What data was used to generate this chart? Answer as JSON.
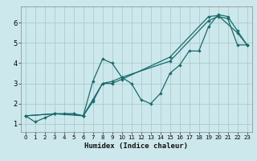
{
  "xlabel": "Humidex (Indice chaleur)",
  "bg_color": "#cce8ec",
  "grid_color": "#aacccc",
  "line_color": "#1a6b6b",
  "xlim": [
    -0.5,
    23.5
  ],
  "ylim": [
    0.6,
    6.8
  ],
  "xticks": [
    0,
    1,
    2,
    3,
    4,
    5,
    6,
    7,
    8,
    9,
    10,
    11,
    12,
    13,
    14,
    15,
    16,
    17,
    18,
    19,
    20,
    21,
    22,
    23
  ],
  "yticks": [
    1,
    2,
    3,
    4,
    5,
    6
  ],
  "series1": [
    [
      0,
      1.4
    ],
    [
      1,
      1.1
    ],
    [
      2,
      1.3
    ],
    [
      3,
      1.5
    ],
    [
      4,
      1.5
    ],
    [
      5,
      1.5
    ],
    [
      6,
      1.4
    ],
    [
      7,
      3.1
    ],
    [
      8,
      4.2
    ],
    [
      9,
      4.0
    ],
    [
      10,
      3.3
    ],
    [
      11,
      3.0
    ],
    [
      12,
      2.2
    ],
    [
      13,
      2.0
    ],
    [
      14,
      2.5
    ],
    [
      15,
      3.5
    ],
    [
      16,
      3.9
    ],
    [
      17,
      4.6
    ],
    [
      18,
      4.6
    ],
    [
      19,
      5.8
    ],
    [
      20,
      6.4
    ],
    [
      21,
      6.3
    ],
    [
      22,
      5.6
    ],
    [
      23,
      4.9
    ]
  ],
  "series2": [
    [
      0,
      1.4
    ],
    [
      3,
      1.5
    ],
    [
      6,
      1.4
    ],
    [
      7,
      2.2
    ],
    [
      8,
      3.0
    ],
    [
      9,
      3.1
    ],
    [
      10,
      3.3
    ],
    [
      15,
      4.1
    ],
    [
      19,
      6.1
    ],
    [
      20,
      6.3
    ],
    [
      21,
      6.2
    ],
    [
      22,
      4.9
    ],
    [
      23,
      4.9
    ]
  ],
  "series3": [
    [
      0,
      1.4
    ],
    [
      3,
      1.5
    ],
    [
      5,
      1.5
    ],
    [
      6,
      1.4
    ],
    [
      7,
      2.1
    ],
    [
      8,
      3.0
    ],
    [
      9,
      3.0
    ],
    [
      10,
      3.2
    ],
    [
      15,
      4.3
    ],
    [
      19,
      6.3
    ],
    [
      20,
      6.35
    ],
    [
      22,
      5.5
    ],
    [
      23,
      4.9
    ]
  ]
}
